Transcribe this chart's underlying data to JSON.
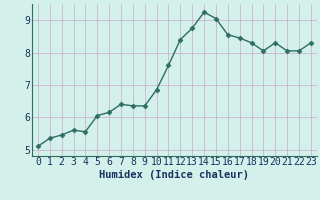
{
  "x": [
    0,
    1,
    2,
    3,
    4,
    5,
    6,
    7,
    8,
    9,
    10,
    11,
    12,
    13,
    14,
    15,
    16,
    17,
    18,
    19,
    20,
    21,
    22,
    23
  ],
  "y": [
    5.1,
    5.35,
    5.45,
    5.6,
    5.55,
    6.05,
    6.15,
    6.4,
    6.35,
    6.35,
    6.85,
    7.6,
    8.4,
    8.75,
    9.25,
    9.05,
    8.55,
    8.45,
    8.3,
    8.05,
    8.3,
    8.05,
    8.05,
    8.3
  ],
  "line_color": "#2d6e63",
  "marker": "D",
  "marker_size": 2.5,
  "line_width": 1.0,
  "bg_color": "#d4f0ea",
  "grid_color": "#c8aac8",
  "xlabel": "Humidex (Indice chaleur)",
  "xlim": [
    -0.5,
    23.5
  ],
  "ylim": [
    4.8,
    9.5
  ],
  "yticks": [
    5,
    6,
    7,
    8,
    9
  ],
  "xticks": [
    0,
    1,
    2,
    3,
    4,
    5,
    6,
    7,
    8,
    9,
    10,
    11,
    12,
    13,
    14,
    15,
    16,
    17,
    18,
    19,
    20,
    21,
    22,
    23
  ],
  "xlabel_fontsize": 7.5,
  "tick_fontsize": 7.0,
  "xlabel_color": "#1a3060",
  "tick_color": "#1a3060"
}
